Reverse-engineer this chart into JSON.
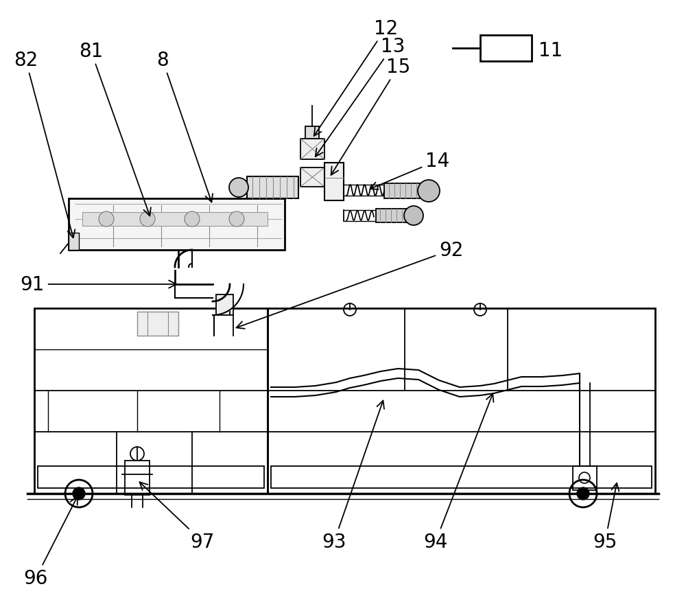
{
  "bg_color": "#ffffff",
  "lc": "#000000",
  "gray1": "#cccccc",
  "gray2": "#999999",
  "gray3": "#e8e8e8",
  "fontsize": 20,
  "fig_w": 10.0,
  "fig_h": 8.78,
  "dpi": 100
}
